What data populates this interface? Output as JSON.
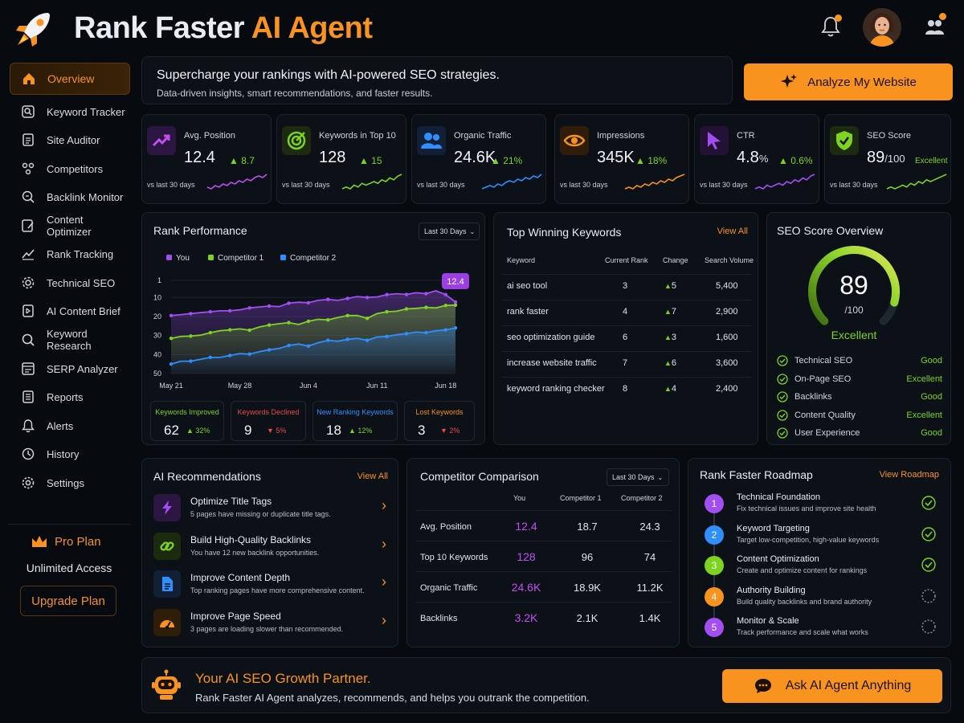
{
  "header": {
    "title_main": "Rank Faster",
    "title_accent": "AI Agent",
    "logo_icon": "rocket-icon",
    "notification_icon": "bell-icon",
    "avatar_icon": "user-avatar",
    "team_icon": "team-icon"
  },
  "sidebar": {
    "items": [
      {
        "label": "Overview",
        "icon": "home-icon"
      },
      {
        "label": "Keyword Tracker",
        "icon": "keyword-tracker-icon"
      },
      {
        "label": "Site Auditor",
        "icon": "site-auditor-icon"
      },
      {
        "label": "Competitors",
        "icon": "competitors-icon"
      },
      {
        "label": "Backlink Monitor",
        "icon": "backlink-icon"
      },
      {
        "label": "Content Optimizer",
        "icon": "content-optimizer-icon"
      },
      {
        "label": "Rank Tracking",
        "icon": "rank-tracking-icon"
      },
      {
        "label": "Technical SEO",
        "icon": "gear-icon"
      },
      {
        "label": "AI Content Brief",
        "icon": "ai-brief-icon"
      },
      {
        "label": "Keyword Research",
        "icon": "search-icon"
      },
      {
        "label": "SERP Analyzer",
        "icon": "serp-icon"
      },
      {
        "label": "Reports",
        "icon": "reports-icon"
      },
      {
        "label": "Alerts",
        "icon": "bell-icon"
      },
      {
        "label": "History",
        "icon": "history-icon"
      },
      {
        "label": "Settings",
        "icon": "settings-icon"
      }
    ],
    "plan": {
      "title": "Pro Plan",
      "subtitle": "Unlimited Access",
      "button": "Upgrade Plan",
      "icon": "crown-icon"
    }
  },
  "banner": {
    "headline": "Supercharge your rankings with AI-powered SEO strategies.",
    "subline": "Data-driven insights, smart recommendations, and faster results.",
    "button": "Analyze My Website",
    "button_icon": "sparkle-icon"
  },
  "metrics": [
    {
      "label": "Avg. Position",
      "value": "12.4",
      "unit": "",
      "change": "8.7",
      "note": "",
      "compare": "vs last 30 days",
      "icon": "trend-up-icon",
      "color": "#c24ef2",
      "trend": [
        8,
        7,
        9,
        8,
        10,
        9,
        11,
        10,
        12,
        11,
        13,
        12,
        14,
        15,
        14,
        16
      ]
    },
    {
      "label": "Keywords in Top 10",
      "value": "128",
      "unit": "",
      "change": "15",
      "note": "",
      "compare": "vs last 30 days",
      "icon": "target-icon",
      "color": "#7ed321",
      "trend": [
        7,
        8,
        7,
        9,
        8,
        10,
        9,
        10,
        11,
        10,
        12,
        11,
        13,
        12,
        14,
        15
      ]
    },
    {
      "label": "Organic Traffic",
      "value": "24.6K",
      "unit": "",
      "change": "21%",
      "note": "",
      "compare": "vs last 30 days",
      "icon": "users-icon",
      "color": "#2f8fff",
      "trend": [
        6,
        7,
        8,
        7,
        9,
        8,
        10,
        11,
        10,
        12,
        11,
        13,
        12,
        14,
        13,
        15
      ]
    },
    {
      "label": "Impressions",
      "value": "345K",
      "unit": "",
      "change": "18%",
      "note": "",
      "compare": "vs last 30 days",
      "icon": "eye-icon",
      "color": "#f7931e",
      "trend": [
        6,
        7,
        6,
        8,
        7,
        9,
        8,
        10,
        9,
        11,
        10,
        12,
        11,
        13,
        14,
        15
      ]
    },
    {
      "label": "CTR",
      "value": "4.8",
      "unit": "%",
      "change": "0.6%",
      "note": "",
      "compare": "vs last 30 days",
      "icon": "cursor-icon",
      "color": "#a24ef2",
      "trend": [
        7,
        8,
        7,
        9,
        8,
        9,
        10,
        9,
        11,
        10,
        12,
        11,
        13,
        12,
        14,
        15
      ]
    },
    {
      "label": "SEO Score",
      "value": "89",
      "unit": "/100",
      "change": "",
      "note": "Excellent",
      "compare": "vs last 30 days",
      "icon": "shield-check-icon",
      "color": "#7ed321",
      "trend": [
        7,
        8,
        7,
        8,
        9,
        8,
        10,
        9,
        11,
        10,
        12,
        11,
        12,
        13,
        14,
        15
      ]
    }
  ],
  "rank_performance": {
    "title": "Rank Performance",
    "range": "Last 30 Days",
    "current_label": "12.4",
    "stats": [
      {
        "label": "Keywords Improved",
        "value": "62",
        "change": "32%",
        "dir": "up",
        "color": "#7ed321"
      },
      {
        "label": "Keywords Declined",
        "value": "9",
        "change": "5%",
        "dir": "down",
        "color": "#e5484d"
      },
      {
        "label": "New Ranking Keywords",
        "value": "18",
        "change": "12%",
        "dir": "up",
        "color": "#2f8fff"
      },
      {
        "label": "Lost Keywords",
        "value": "3",
        "change": "2%",
        "dir": "down",
        "color": "#f7931e"
      }
    ]
  },
  "chart_data": {
    "type": "line",
    "x": [
      "May 21",
      "May 22",
      "May 23",
      "May 24",
      "May 25",
      "May 26",
      "May 27",
      "May 28",
      "May 29",
      "May 30",
      "May 31",
      "Jun 1",
      "Jun 2",
      "Jun 3",
      "Jun 4",
      "Jun 5",
      "Jun 6",
      "Jun 7",
      "Jun 8",
      "Jun 9",
      "Jun 10",
      "Jun 11",
      "Jun 12",
      "Jun 13",
      "Jun 14",
      "Jun 15",
      "Jun 16",
      "Jun 17",
      "Jun 18",
      "Jun 19"
    ],
    "x_tick_labels": [
      "May 21",
      "May 28",
      "Jun 4",
      "Jun 11",
      "Jun 18"
    ],
    "y_ticks": [
      1,
      10,
      20,
      30,
      40,
      50
    ],
    "ylim": [
      1,
      50
    ],
    "y_inverted": true,
    "legend_position": "top-left",
    "series": [
      {
        "name": "You",
        "color": "#a24ef2",
        "values": [
          19.5,
          19,
          18.5,
          18,
          17.5,
          17,
          17,
          16.5,
          15.5,
          15,
          14.5,
          14.8,
          13,
          12.5,
          12.8,
          11.5,
          11,
          11.5,
          10.5,
          9.5,
          10,
          9.7,
          8.5,
          8,
          8.4,
          7.5,
          8,
          6.5,
          8.5,
          12.4
        ]
      },
      {
        "name": "Competitor 1",
        "color": "#7ed321",
        "values": [
          31.5,
          30.5,
          30.3,
          29.8,
          28.5,
          27.5,
          27,
          26.5,
          27.2,
          25.5,
          24.5,
          23.8,
          23.2,
          24.2,
          22.5,
          21.5,
          21.8,
          20.5,
          19.5,
          19.5,
          21,
          18.5,
          17.5,
          17.2,
          16,
          15.7,
          15.2,
          15.5,
          14.2,
          14
        ]
      },
      {
        "name": "Competitor 2",
        "color": "#2f8fff",
        "values": [
          45,
          43.5,
          43.5,
          42.5,
          41.5,
          41.5,
          40.5,
          39.5,
          39.8,
          38.5,
          37.5,
          36.8,
          35.2,
          34.5,
          35.5,
          33.8,
          32.5,
          33,
          32,
          31.5,
          32.5,
          30.8,
          30.5,
          29.6,
          29,
          28.2,
          28.5,
          27.5,
          27,
          26
        ]
      }
    ],
    "annotation": "12.4"
  },
  "top_keywords": {
    "title": "Top Winning Keywords",
    "view_all": "View All",
    "columns": [
      "Keyword",
      "Current Rank",
      "Change",
      "Search Volume"
    ],
    "rows": [
      {
        "keyword": "ai seo tool",
        "rank": "3",
        "change": "5",
        "volume": "5,400"
      },
      {
        "keyword": "rank faster",
        "rank": "4",
        "change": "7",
        "volume": "2,900"
      },
      {
        "keyword": "seo optimization guide",
        "rank": "6",
        "change": "3",
        "volume": "1,600"
      },
      {
        "keyword": "increase website traffic",
        "rank": "7",
        "change": "6",
        "volume": "3,600"
      },
      {
        "keyword": "keyword ranking checker",
        "rank": "8",
        "change": "4",
        "volume": "2,400"
      }
    ]
  },
  "seo_score": {
    "title": "SEO Score Overview",
    "value": "89",
    "max": "/100",
    "rating": "Excellent",
    "fraction": 0.89,
    "items": [
      {
        "label": "Technical SEO",
        "status": "Good"
      },
      {
        "label": "On-Page SEO",
        "status": "Excellent"
      },
      {
        "label": "Backlinks",
        "status": "Good"
      },
      {
        "label": "Content Quality",
        "status": "Excellent"
      },
      {
        "label": "User Experience",
        "status": "Good"
      }
    ]
  },
  "recommendations": {
    "title": "AI Recommendations",
    "view_all": "View All",
    "items": [
      {
        "title": "Optimize Title Tags",
        "desc": "5 pages have missing or duplicate title tags.",
        "icon": "lightning-icon",
        "color": "#a24ef2",
        "bg": "#2a1640"
      },
      {
        "title": "Build High-Quality Backlinks",
        "desc": "You have 12 new backlink opportunities.",
        "icon": "link-icon",
        "color": "#7ed321",
        "bg": "#1c2a10"
      },
      {
        "title": "Improve Content Depth",
        "desc": "Top ranking pages have more comprehensive content.",
        "icon": "document-icon",
        "color": "#2f8fff",
        "bg": "#112036"
      },
      {
        "title": "Improve Page Speed",
        "desc": "3 pages are loading slower than recommended.",
        "icon": "speedometer-icon",
        "color": "#f7931e",
        "bg": "#2f1d08"
      }
    ]
  },
  "competitor": {
    "title": "Competitor Comparison",
    "range": "Last 30 Days",
    "columns": [
      "You",
      "Competitor 1",
      "Competitor 2"
    ],
    "rows": [
      {
        "metric": "Avg. Position",
        "you": "12.4",
        "c1": "18.7",
        "c2": "24.3"
      },
      {
        "metric": "Top 10 Keywords",
        "you": "128",
        "c1": "96",
        "c2": "74"
      },
      {
        "metric": "Organic Traffic",
        "you": "24.6K",
        "c1": "18.9K",
        "c2": "11.2K"
      },
      {
        "metric": "Backlinks",
        "you": "3.2K",
        "c1": "2.1K",
        "c2": "1.4K"
      }
    ]
  },
  "roadmap": {
    "title": "Rank Faster Roadmap",
    "view": "View Roadmap",
    "steps": [
      {
        "num": "1",
        "title": "Technical Foundation",
        "desc": "Fix technical issues and improve site health",
        "color": "#a24ef2",
        "done": true
      },
      {
        "num": "2",
        "title": "Keyword Targeting",
        "desc": "Target low-competition, high-value keywords",
        "color": "#2f8fff",
        "done": true
      },
      {
        "num": "3",
        "title": "Content Optimization",
        "desc": "Create and optimize content for rankings",
        "color": "#7ed321",
        "done": true
      },
      {
        "num": "4",
        "title": "Authority Building",
        "desc": "Build quality backlinks and brand authority",
        "color": "#f7931e",
        "done": false
      },
      {
        "num": "5",
        "title": "Monitor & Scale",
        "desc": "Track performance and scale what works",
        "color": "#a24ef2",
        "done": false
      }
    ]
  },
  "footer": {
    "title": "Your AI SEO Growth Partner.",
    "desc": "Rank Faster AI Agent analyzes, recommends, and helps you outrank the competition.",
    "button": "Ask AI Agent Anything",
    "robot_icon": "robot-icon",
    "chat_icon": "chat-icon"
  }
}
